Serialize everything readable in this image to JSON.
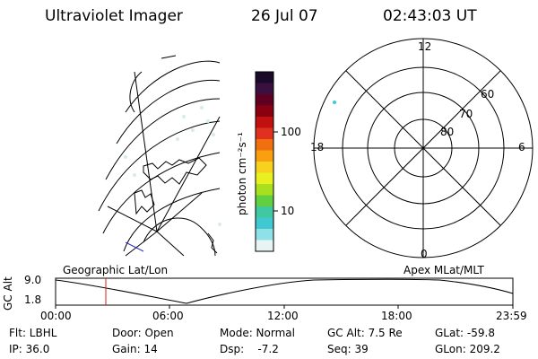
{
  "header": {
    "instrument": "Ultraviolet Imager",
    "date": "26 Jul 07",
    "time": "02:43:03 UT"
  },
  "geo_panel": {
    "label": "Geographic Lat/Lon"
  },
  "colorbar": {
    "unit_label": "photon cm⁻²s⁻¹",
    "ticks": [
      "100",
      "10"
    ],
    "colors": [
      "#1a0a2a",
      "#3a1040",
      "#600020",
      "#8a0010",
      "#c01010",
      "#e03020",
      "#f07010",
      "#f8a010",
      "#f8d020",
      "#e8f020",
      "#a8e020",
      "#60d040",
      "#40c8a0",
      "#40c8d0",
      "#90e0e8",
      "#e8f4f4"
    ]
  },
  "polar_panel": {
    "label": "Apex MLat/MLT",
    "mlt_labels": [
      "12",
      "18",
      "6",
      "0"
    ],
    "lat_labels": [
      "60",
      "70",
      "80"
    ]
  },
  "altitude_plot": {
    "ylabel": "GC Alt",
    "y_ticks": [
      "9.0",
      "1.8"
    ],
    "x_ticks": [
      "00:00",
      "06:00",
      "12:00",
      "18:00",
      "23:59"
    ],
    "marker_time": "02:43",
    "marker_color": "#d02020"
  },
  "footer": {
    "row1": [
      "Flt: LBHL",
      "Door: Open",
      "Mode: Normal",
      "GC Alt: 7.5 Re",
      "GLat: -59.8"
    ],
    "row2": [
      "IP: 36.0",
      "Gain: 14",
      "Dsp:    -7.2",
      "Seq: 39",
      "GLon: 209.2"
    ]
  }
}
